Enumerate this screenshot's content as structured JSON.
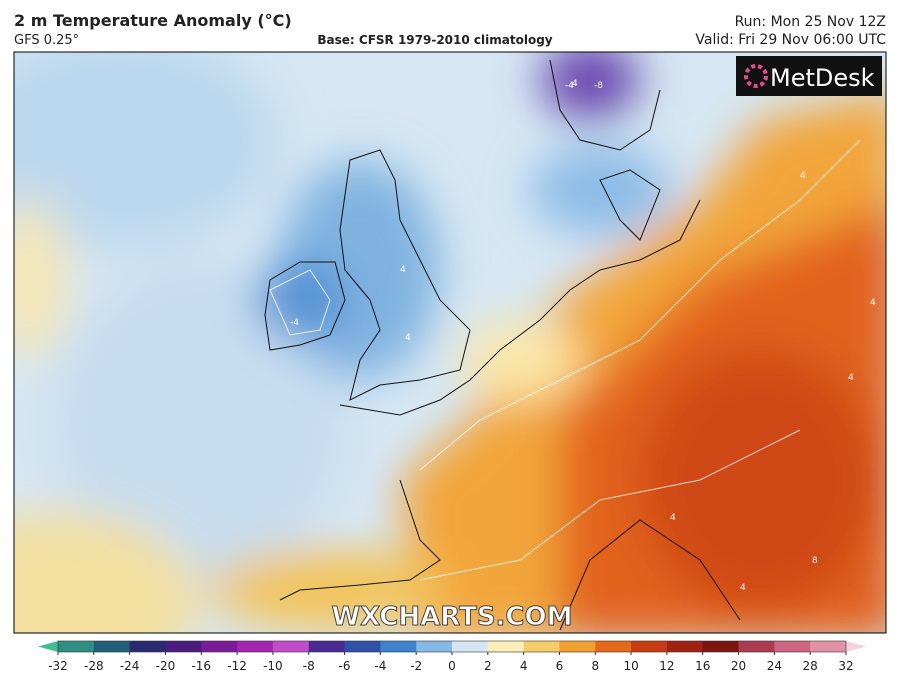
{
  "header": {
    "title": "2 m Temperature Anomaly (°C)",
    "model": "GFS 0.25°",
    "base": "Base: CFSR 1979-2010 climatology",
    "run": "Run: Mon 25 Nov 12Z",
    "valid": "Valid: Fri 29 Nov 06:00 UTC"
  },
  "map": {
    "logo": "MetDesk",
    "watermark": "WXCHARTS.COM",
    "contour_labels": [
      "-4",
      "-8",
      "4",
      "-4",
      "4",
      "4",
      "4",
      "4",
      "4",
      "4",
      "4",
      "8"
    ]
  },
  "colorbar": {
    "ticks": [
      -32,
      -28,
      -24,
      -20,
      -16,
      -12,
      -10,
      -8,
      -6,
      -4,
      -2,
      0,
      2,
      4,
      6,
      8,
      10,
      12,
      16,
      20,
      24,
      28,
      32
    ],
    "colors": [
      "#2f8f83",
      "#1f5f78",
      "#2a2a70",
      "#4a1c80",
      "#7a1c98",
      "#a424b4",
      "#c04ccc",
      "#4a2a92",
      "#2f52a8",
      "#3d82cc",
      "#86b9e4",
      "#d4e6f4",
      "#fbefb8",
      "#f6cc68",
      "#f0a030",
      "#e46a1a",
      "#c83c10",
      "#a02210",
      "#7e1410",
      "#ad3c50",
      "#cf6480",
      "#e392a6",
      "#f2c2cc"
    ],
    "low_color": "#3fbf8f",
    "high_color": "#f6d0dc"
  }
}
